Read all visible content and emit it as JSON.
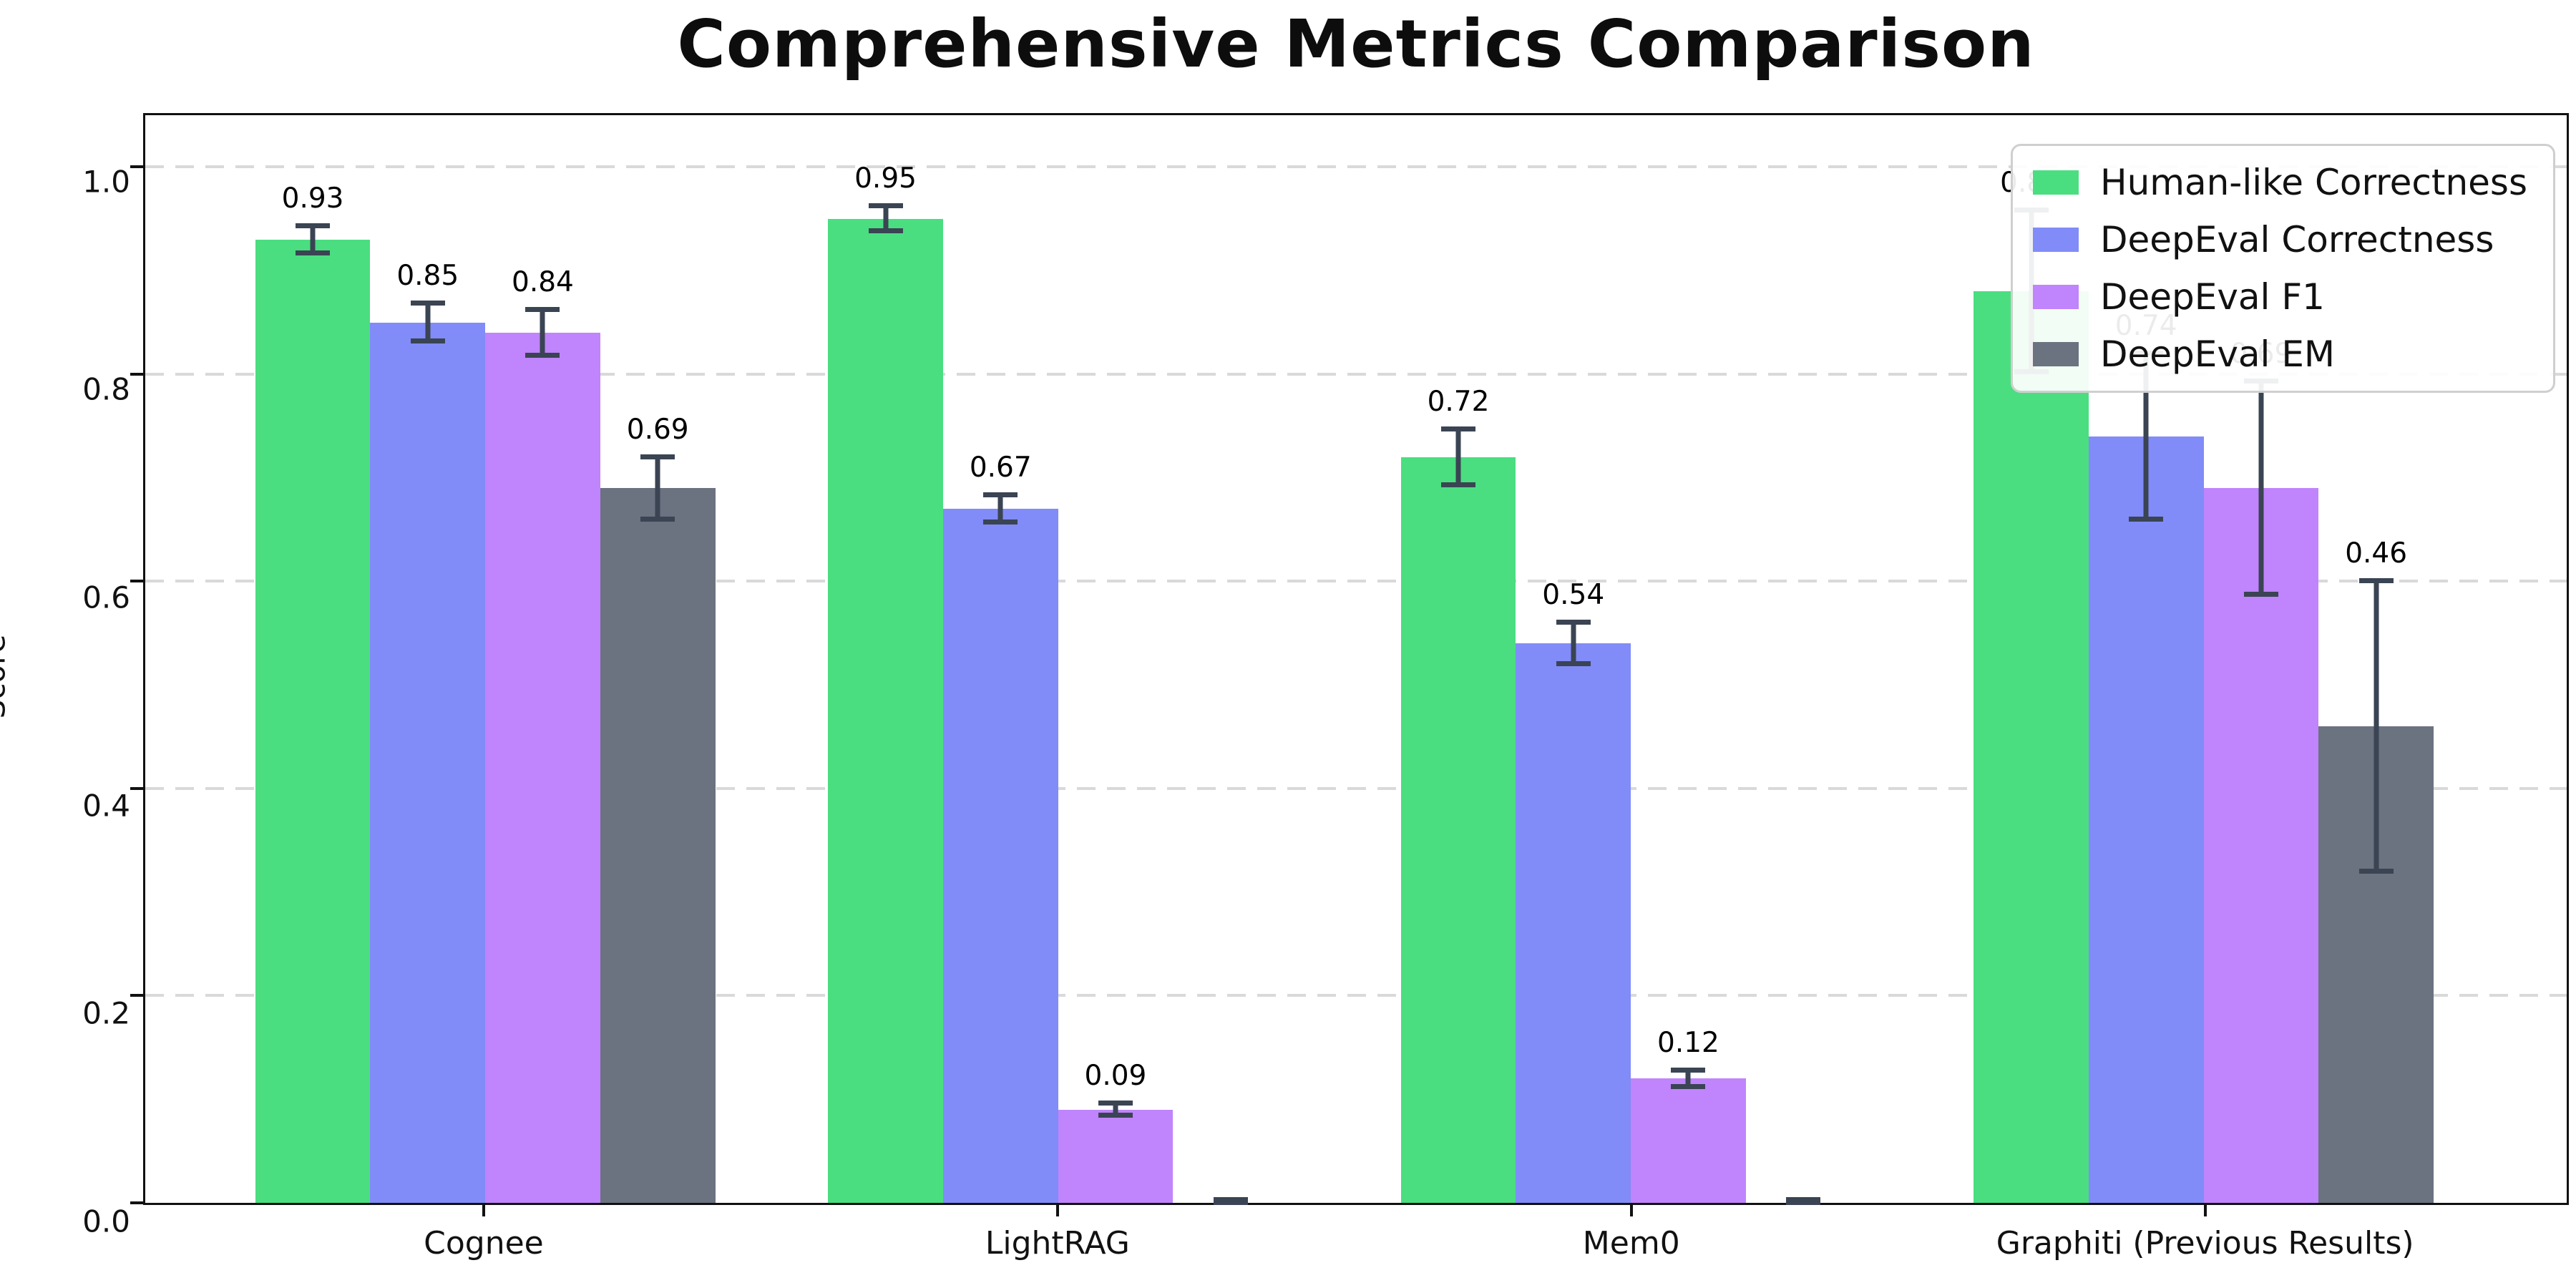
{
  "title": "Comprehensive Metrics Comparison",
  "chart_data": {
    "type": "bar",
    "title": "Comprehensive Metrics Comparison",
    "xlabel": "",
    "ylabel": "Score",
    "ylim": [
      0,
      1.05
    ],
    "yticks": [
      "0.0",
      "0.2",
      "0.4",
      "0.6",
      "0.8",
      "1.0"
    ],
    "grid": "horizontal-dashed",
    "legend_position": "upper right",
    "error_bars": true,
    "categories": [
      "Cognee",
      "LightRAG",
      "Mem0",
      "Graphiti (Previous Results)"
    ],
    "series": [
      {
        "name": "Human-like Correctness",
        "color": "#4ade80",
        "values": [
          0.93,
          0.95,
          0.72,
          0.88
        ],
        "errors": [
          0.013,
          0.012,
          0.027,
          0.078
        ],
        "labels": [
          "0.93",
          "0.95",
          "0.72",
          "0.88"
        ]
      },
      {
        "name": "DeepEval Correctness",
        "color": "#818cf8",
        "values": [
          0.85,
          0.67,
          0.54,
          0.74
        ],
        "errors": [
          0.018,
          0.013,
          0.02,
          0.08
        ],
        "labels": [
          "0.85",
          "0.67",
          "0.54",
          "0.74"
        ]
      },
      {
        "name": "DeepEval F1",
        "color": "#c084fc",
        "values": [
          0.84,
          0.09,
          0.12,
          0.69
        ],
        "errors": [
          0.022,
          0.006,
          0.008,
          0.103
        ],
        "labels": [
          "0.84",
          "0.09",
          "0.12",
          "0.69"
        ]
      },
      {
        "name": "DeepEval EM",
        "color": "#6b7280",
        "values": [
          0.69,
          0.0,
          0.0,
          0.46
        ],
        "errors": [
          0.03,
          0.003,
          0.003,
          0.14
        ],
        "labels": [
          "0.69",
          null,
          null,
          "0.46"
        ]
      }
    ],
    "style": {
      "errorbar_color": "#3a4453",
      "grid_color": "#d9d9d9",
      "spine_color": "#111111",
      "background": "#ffffff"
    }
  }
}
